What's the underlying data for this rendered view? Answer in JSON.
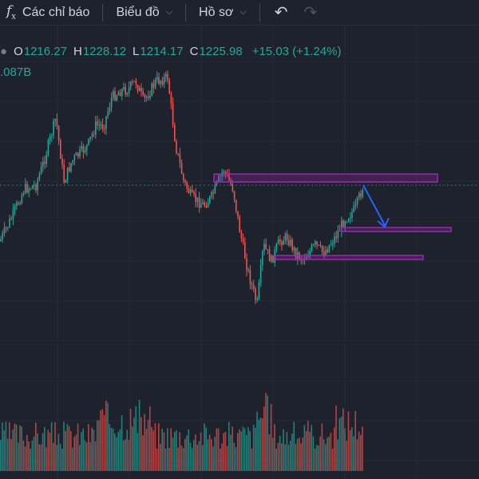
{
  "toolbar": {
    "indicators_label": "Các chỉ báo",
    "chart_label": "Biểu đồ",
    "profile_label": "Hồ sơ"
  },
  "legend": {
    "open_label": "O",
    "open": "1216.27",
    "high_label": "H",
    "high": "1228.12",
    "low_label": "L",
    "low": "1214.17",
    "close_label": "C",
    "close": "1225.98",
    "change": "+15.03 (+1.24%)",
    "volume": ".087B"
  },
  "colors": {
    "background": "#1e222d",
    "up": "#26a69a",
    "down": "#ef5350",
    "zone": "#9c27b0",
    "arrow": "#2962ff"
  },
  "icons": [
    "fx-icon",
    "chevron-down-icon",
    "undo-icon",
    "redo-icon",
    "down-arrow-annotation"
  ]
}
